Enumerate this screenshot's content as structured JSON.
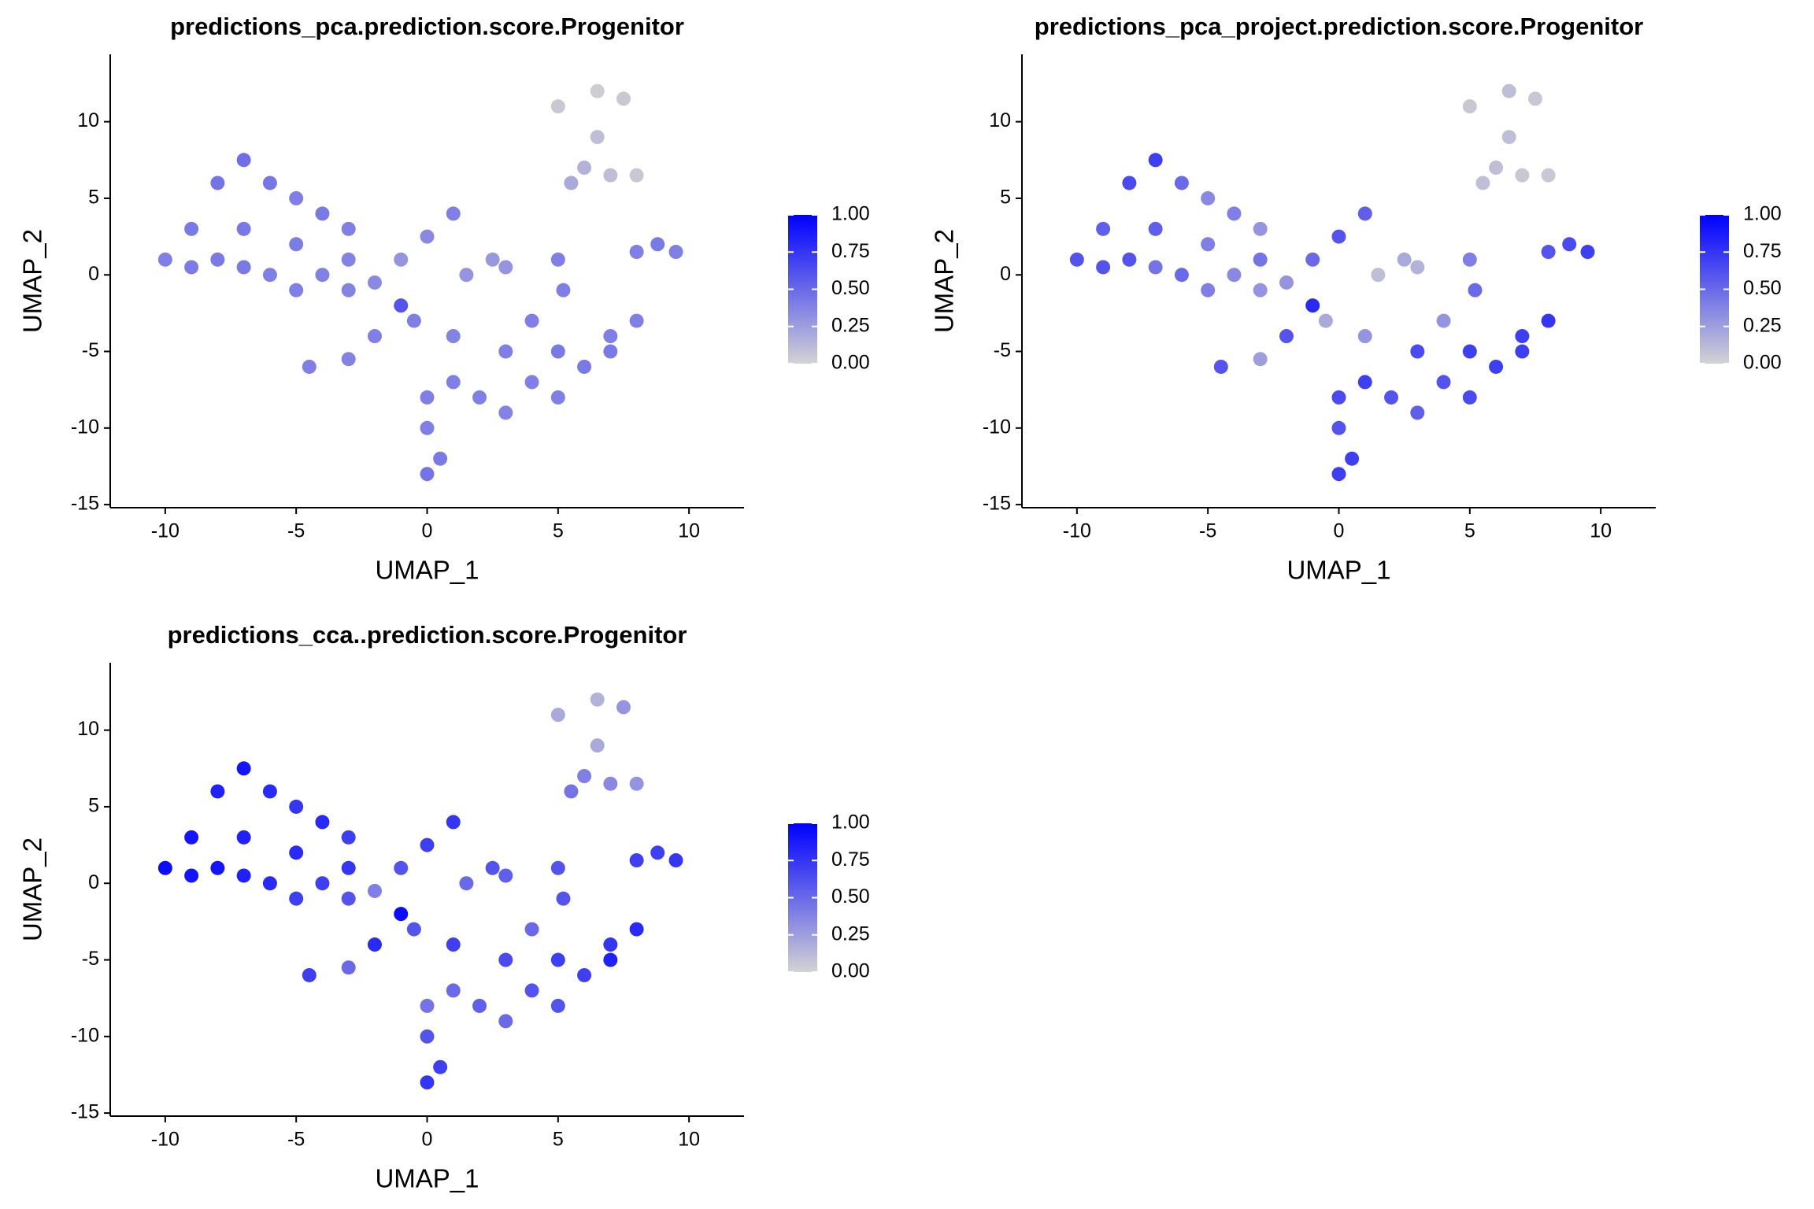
{
  "chart_data": [
    {
      "type": "scatter",
      "title": "predictions_pca.prediction.score.Progenitor",
      "xlabel": "UMAP_1",
      "ylabel": "UMAP_2",
      "x": [
        -10,
        -9,
        -8,
        -7,
        -6,
        -5,
        -4,
        -3,
        -3,
        -5,
        -7,
        -8,
        -6,
        -4,
        -3,
        -9,
        -7,
        -5,
        -2,
        -1,
        0,
        1,
        1.5,
        2.5,
        3,
        -1,
        -0.5,
        -4.5,
        -3,
        -2,
        1,
        3,
        5,
        7,
        8,
        6,
        4,
        7,
        5,
        3,
        1,
        0,
        2,
        0,
        0.5,
        0,
        5,
        6.5,
        7.5,
        6.5,
        6,
        7,
        5.5,
        8,
        8,
        9.5,
        8.8,
        5,
        5.2,
        4
      ],
      "y": [
        1,
        3,
        6,
        7.5,
        6,
        5,
        4,
        3,
        1,
        2,
        3,
        1,
        0,
        0,
        -1,
        0.5,
        0.5,
        -1,
        -0.5,
        1,
        2.5,
        4,
        0,
        1,
        0.5,
        -2,
        -3,
        -6,
        -5.5,
        -4,
        -4,
        -5,
        -5,
        -4,
        -3,
        -6,
        -7,
        -5,
        -8,
        -9,
        -7,
        -8,
        -8,
        -10,
        -12,
        -13,
        11,
        12,
        11.5,
        9,
        7,
        6.5,
        6,
        6.5,
        1.5,
        1.5,
        2,
        1,
        -1,
        -3
      ],
      "values": [
        0.4,
        0.42,
        0.45,
        0.48,
        0.44,
        0.4,
        0.42,
        0.4,
        0.38,
        0.41,
        0.43,
        0.42,
        0.4,
        0.39,
        0.38,
        0.41,
        0.42,
        0.4,
        0.35,
        0.3,
        0.35,
        0.4,
        0.3,
        0.28,
        0.3,
        0.6,
        0.4,
        0.4,
        0.38,
        0.4,
        0.38,
        0.4,
        0.42,
        0.4,
        0.4,
        0.42,
        0.4,
        0.42,
        0.4,
        0.38,
        0.4,
        0.4,
        0.4,
        0.4,
        0.42,
        0.45,
        0.05,
        0.03,
        0.05,
        0.1,
        0.15,
        0.1,
        0.2,
        0.05,
        0.4,
        0.4,
        0.42,
        0.4,
        0.4,
        0.4
      ],
      "xlim": [
        -12.1,
        12.1
      ],
      "ylim": [
        -15.2,
        14.4
      ],
      "xticks": [
        -10,
        -5,
        0,
        5,
        10
      ],
      "yticks": [
        -15,
        -10,
        -5,
        0,
        5,
        10
      ],
      "colorbar": {
        "lim": [
          0,
          1
        ],
        "low_color": "#d3d3d3",
        "high_color": "#0000ff",
        "ticks": [
          {
            "value": 0,
            "label": "0.00"
          },
          {
            "value": 0.25,
            "label": "0.25"
          },
          {
            "value": 0.5,
            "label": "0.50"
          },
          {
            "value": 0.75,
            "label": "0.75"
          },
          {
            "value": 1,
            "label": "1.00"
          }
        ]
      }
    },
    {
      "type": "scatter",
      "title": "predictions_pca_project.prediction.score.Progenitor",
      "xlabel": "UMAP_1",
      "ylabel": "UMAP_2",
      "x": [
        -10,
        -9,
        -8,
        -7,
        -6,
        -5,
        -4,
        -3,
        -3,
        -5,
        -7,
        -8,
        -6,
        -4,
        -3,
        -9,
        -7,
        -5,
        -2,
        -1,
        0,
        1,
        1.5,
        2.5,
        3,
        -1,
        -0.5,
        -4.5,
        -3,
        -2,
        1,
        3,
        5,
        7,
        8,
        6,
        4,
        7,
        5,
        3,
        1,
        0,
        2,
        0,
        0.5,
        0,
        5,
        6.5,
        7.5,
        6.5,
        6,
        7,
        5.5,
        8,
        8,
        9.5,
        8.8,
        5,
        5.2,
        4
      ],
      "y": [
        1,
        3,
        6,
        7.5,
        6,
        5,
        4,
        3,
        1,
        2,
        3,
        1,
        0,
        0,
        -1,
        0.5,
        0.5,
        -1,
        -0.5,
        1,
        2.5,
        4,
        0,
        1,
        0.5,
        -2,
        -3,
        -6,
        -5.5,
        -4,
        -4,
        -5,
        -5,
        -4,
        -3,
        -6,
        -7,
        -5,
        -8,
        -9,
        -7,
        -8,
        -8,
        -10,
        -12,
        -13,
        11,
        12,
        11.5,
        9,
        7,
        6.5,
        6,
        6.5,
        1.5,
        1.5,
        2,
        1,
        -1,
        -3
      ],
      "values": [
        0.6,
        0.55,
        0.65,
        0.7,
        0.5,
        0.35,
        0.4,
        0.3,
        0.45,
        0.4,
        0.55,
        0.6,
        0.5,
        0.35,
        0.3,
        0.6,
        0.45,
        0.4,
        0.3,
        0.5,
        0.6,
        0.55,
        0.1,
        0.2,
        0.15,
        0.8,
        0.2,
        0.6,
        0.25,
        0.6,
        0.3,
        0.65,
        0.7,
        0.7,
        0.75,
        0.7,
        0.6,
        0.7,
        0.65,
        0.55,
        0.7,
        0.65,
        0.6,
        0.6,
        0.7,
        0.7,
        0.05,
        0.1,
        0.05,
        0.1,
        0.1,
        0.05,
        0.1,
        0.05,
        0.6,
        0.7,
        0.65,
        0.4,
        0.5,
        0.3
      ],
      "xlim": [
        -12.1,
        12.1
      ],
      "ylim": [
        -15.2,
        14.4
      ],
      "xticks": [
        -10,
        -5,
        0,
        5,
        10
      ],
      "yticks": [
        -15,
        -10,
        -5,
        0,
        5,
        10
      ],
      "colorbar": {
        "lim": [
          0,
          1
        ],
        "low_color": "#d3d3d3",
        "high_color": "#0000ff",
        "ticks": [
          {
            "value": 0,
            "label": "0.00"
          },
          {
            "value": 0.25,
            "label": "0.25"
          },
          {
            "value": 0.5,
            "label": "0.50"
          },
          {
            "value": 0.75,
            "label": "0.75"
          },
          {
            "value": 1,
            "label": "1.00"
          }
        ]
      }
    },
    {
      "type": "scatter",
      "title": "predictions_cca..prediction.score.Progenitor",
      "xlabel": "UMAP_1",
      "ylabel": "UMAP_2",
      "x": [
        -10,
        -9,
        -8,
        -7,
        -6,
        -5,
        -4,
        -3,
        -3,
        -5,
        -7,
        -8,
        -6,
        -4,
        -3,
        -9,
        -7,
        -5,
        -2,
        -1,
        0,
        1,
        1.5,
        2.5,
        3,
        -1,
        -0.5,
        -4.5,
        -3,
        -2,
        1,
        3,
        5,
        7,
        8,
        6,
        4,
        7,
        5,
        3,
        1,
        0,
        2,
        0,
        0.5,
        0,
        5,
        6.5,
        7.5,
        6.5,
        6,
        7,
        5.5,
        8,
        8,
        9.5,
        8.8,
        5,
        5.2,
        4
      ],
      "y": [
        1,
        3,
        6,
        7.5,
        6,
        5,
        4,
        3,
        1,
        2,
        3,
        1,
        0,
        0,
        -1,
        0.5,
        0.5,
        -1,
        -0.5,
        1,
        2.5,
        4,
        0,
        1,
        0.5,
        -2,
        -3,
        -6,
        -5.5,
        -4,
        -4,
        -5,
        -5,
        -4,
        -3,
        -6,
        -7,
        -5,
        -8,
        -9,
        -7,
        -8,
        -8,
        -10,
        -12,
        -13,
        11,
        12,
        11.5,
        9,
        7,
        6.5,
        6,
        6.5,
        1.5,
        1.5,
        2,
        1,
        -1,
        -3
      ],
      "values": [
        0.95,
        0.9,
        0.85,
        0.9,
        0.8,
        0.75,
        0.8,
        0.7,
        0.75,
        0.8,
        0.85,
        0.9,
        0.8,
        0.7,
        0.6,
        0.9,
        0.85,
        0.7,
        0.4,
        0.6,
        0.7,
        0.75,
        0.5,
        0.6,
        0.55,
        0.95,
        0.6,
        0.7,
        0.5,
        0.8,
        0.7,
        0.65,
        0.7,
        0.75,
        0.8,
        0.7,
        0.6,
        0.85,
        0.6,
        0.5,
        0.5,
        0.45,
        0.55,
        0.6,
        0.7,
        0.75,
        0.2,
        0.15,
        0.3,
        0.2,
        0.4,
        0.35,
        0.45,
        0.3,
        0.7,
        0.75,
        0.7,
        0.6,
        0.6,
        0.5
      ],
      "xlim": [
        -12.1,
        12.1
      ],
      "ylim": [
        -15.2,
        14.4
      ],
      "xticks": [
        -10,
        -5,
        0,
        5,
        10
      ],
      "yticks": [
        -15,
        -10,
        -5,
        0,
        5,
        10
      ],
      "colorbar": {
        "lim": [
          0,
          1
        ],
        "low_color": "#d3d3d3",
        "high_color": "#0000ff",
        "ticks": [
          {
            "value": 0,
            "label": "0.00"
          },
          {
            "value": 0.25,
            "label": "0.25"
          },
          {
            "value": 0.5,
            "label": "0.50"
          },
          {
            "value": 0.75,
            "label": "0.75"
          },
          {
            "value": 1,
            "label": "1.00"
          }
        ]
      }
    }
  ]
}
